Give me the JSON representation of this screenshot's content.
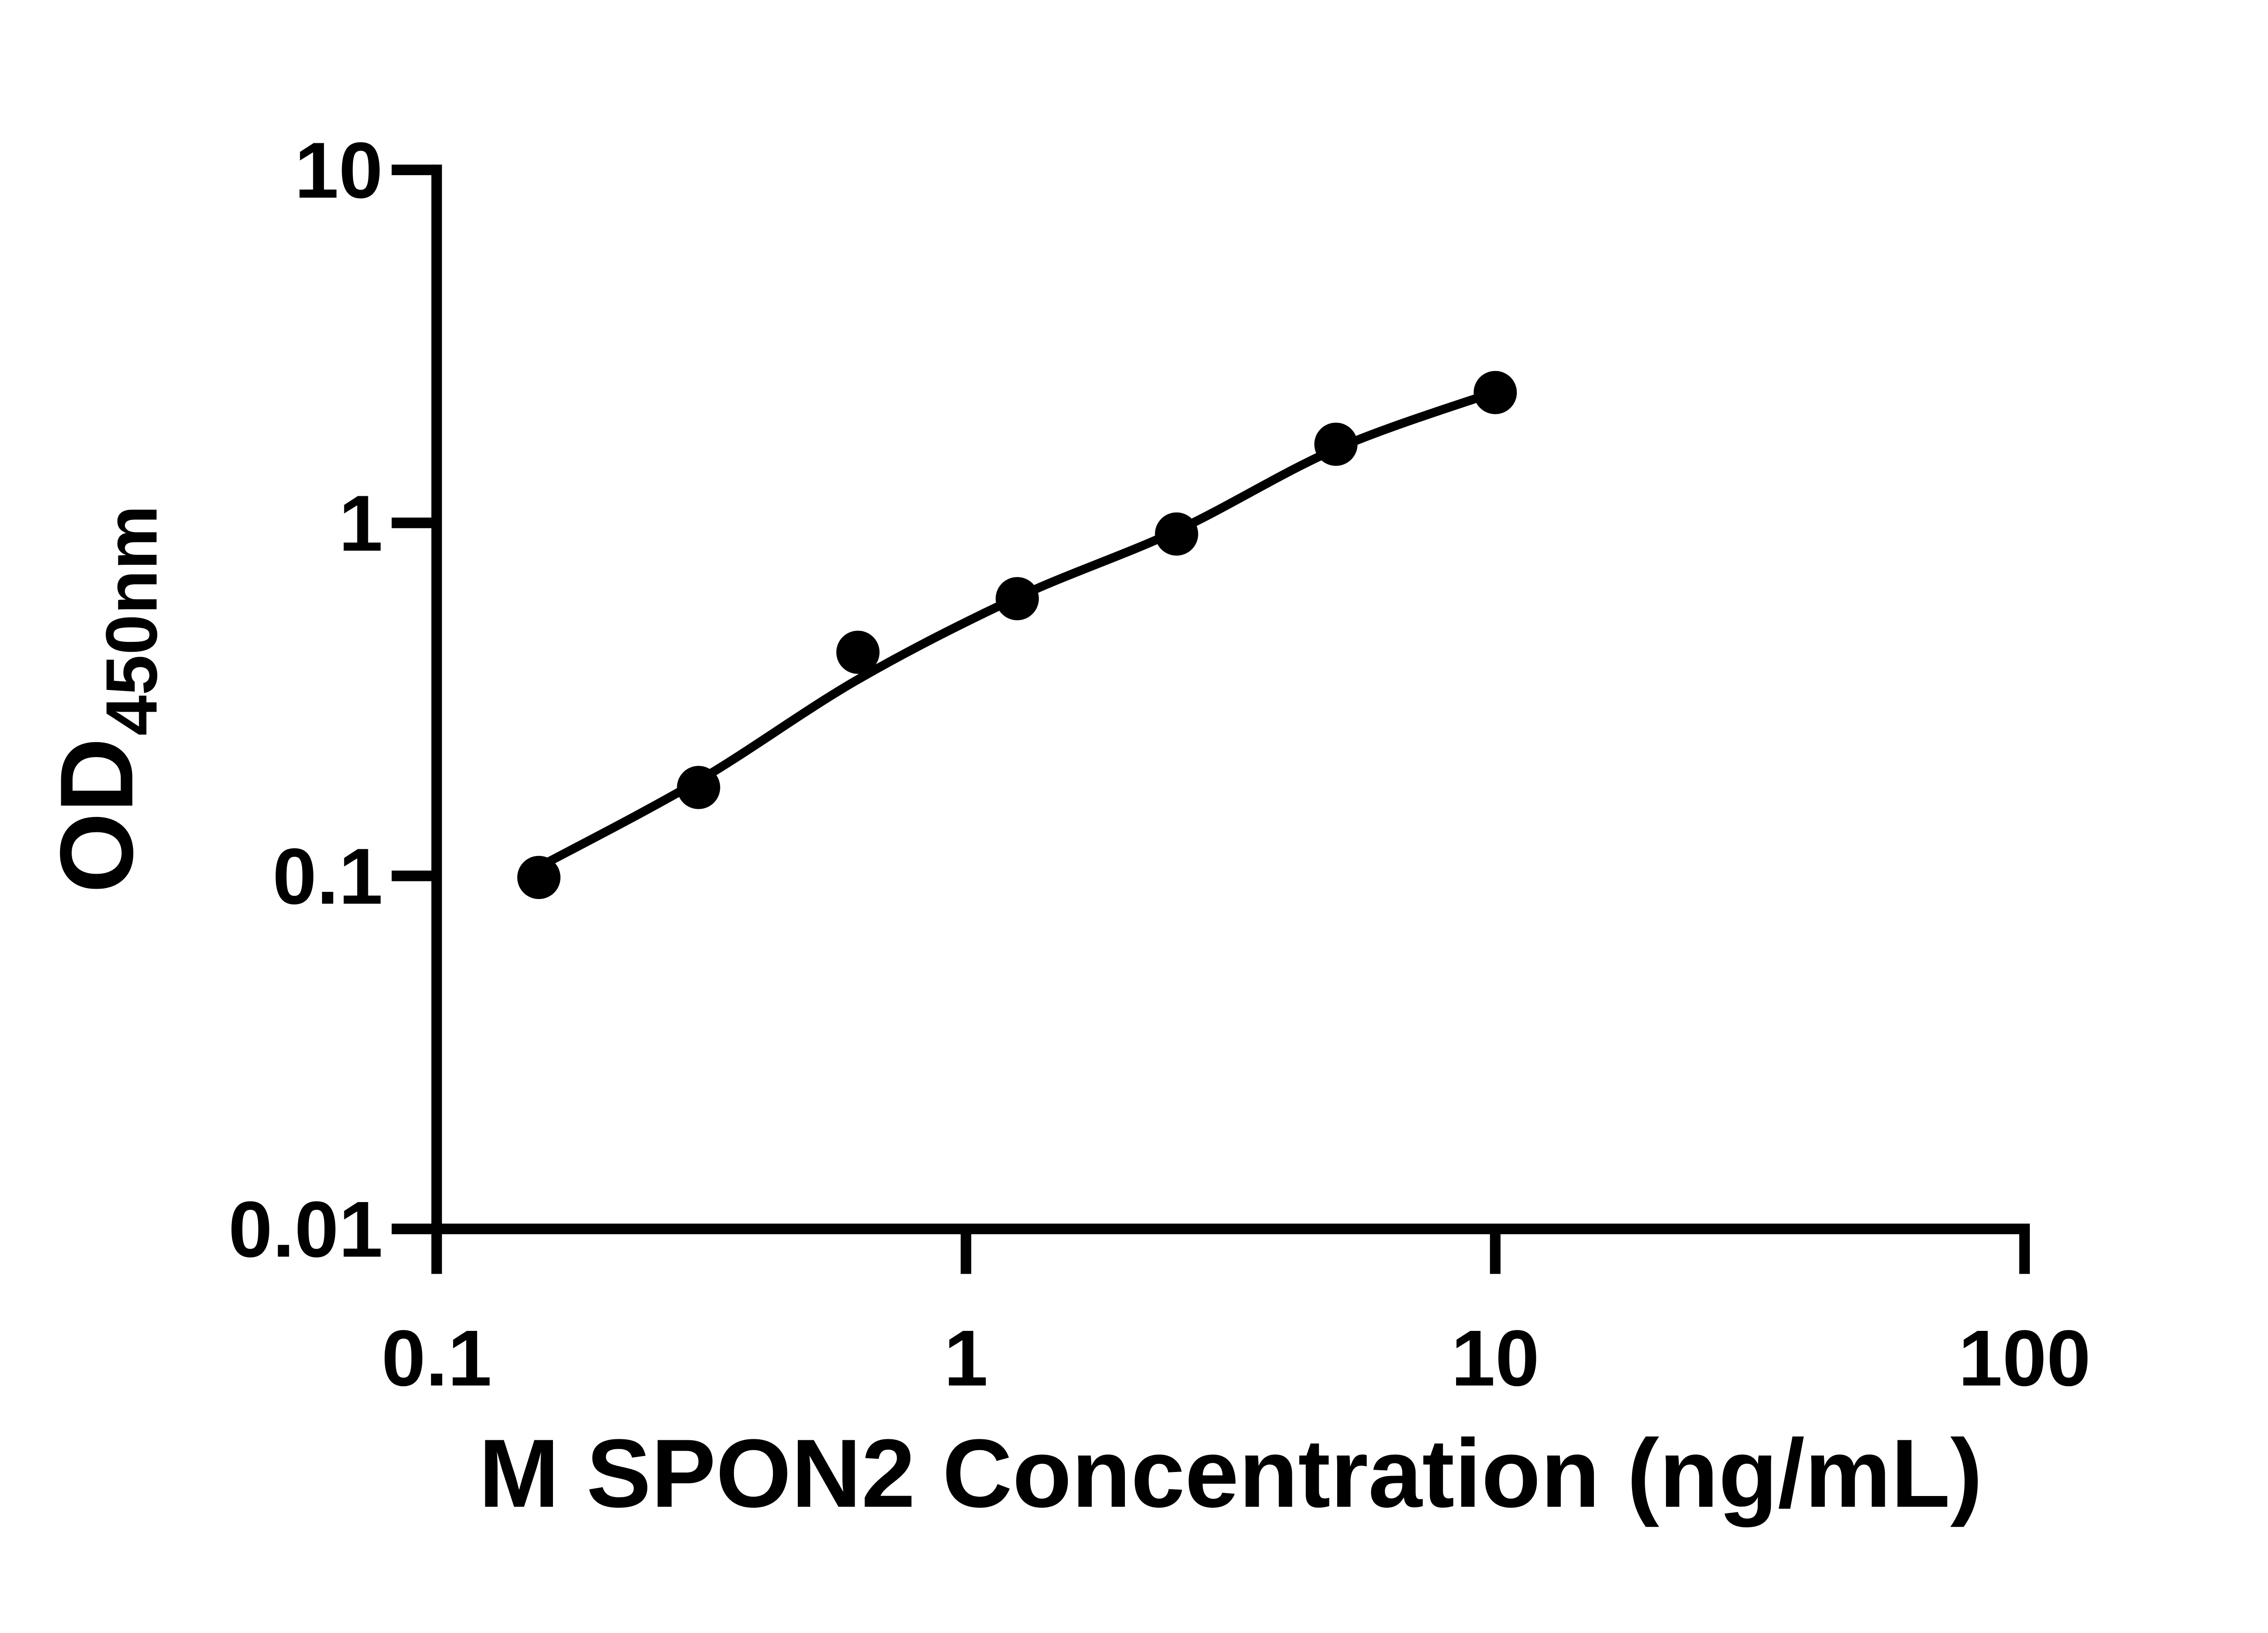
{
  "chart_data": {
    "type": "scatter",
    "title": "",
    "xlabel": "M SPON2 Concentration (ng/mL)",
    "ylabel": "OD450nm",
    "ylabel_main": "OD",
    "ylabel_sub": "450nm",
    "x_scale": "log",
    "y_scale": "log",
    "xlim": [
      0.1,
      100
    ],
    "ylim": [
      0.01,
      10
    ],
    "grid": "off",
    "legend": "none",
    "marker_color": "#000000",
    "line_color": "#000000",
    "background_color": "#ffffff",
    "x_ticks": [
      {
        "value": 0.1,
        "label": "0.1"
      },
      {
        "value": 1,
        "label": "1"
      },
      {
        "value": 10,
        "label": "10"
      },
      {
        "value": 100,
        "label": "100"
      }
    ],
    "y_ticks": [
      {
        "value": 0.01,
        "label": "0.01"
      },
      {
        "value": 0.1,
        "label": "0.1"
      },
      {
        "value": 1,
        "label": "1"
      },
      {
        "value": 10,
        "label": "10"
      }
    ],
    "points": [
      {
        "x": 0.156,
        "y": 0.099
      },
      {
        "x": 0.3125,
        "y": 0.178
      },
      {
        "x": 0.625,
        "y": 0.43
      },
      {
        "x": 1.25,
        "y": 0.61
      },
      {
        "x": 2.5,
        "y": 0.93
      },
      {
        "x": 5,
        "y": 1.67
      },
      {
        "x": 10,
        "y": 2.34
      }
    ],
    "fit_curve": [
      {
        "x": 0.156,
        "y": 0.106
      },
      {
        "x": 0.3125,
        "y": 0.186
      },
      {
        "x": 0.625,
        "y": 0.36
      },
      {
        "x": 1.25,
        "y": 0.615
      },
      {
        "x": 2.5,
        "y": 0.95
      },
      {
        "x": 5,
        "y": 1.62
      },
      {
        "x": 10,
        "y": 2.35
      }
    ]
  }
}
